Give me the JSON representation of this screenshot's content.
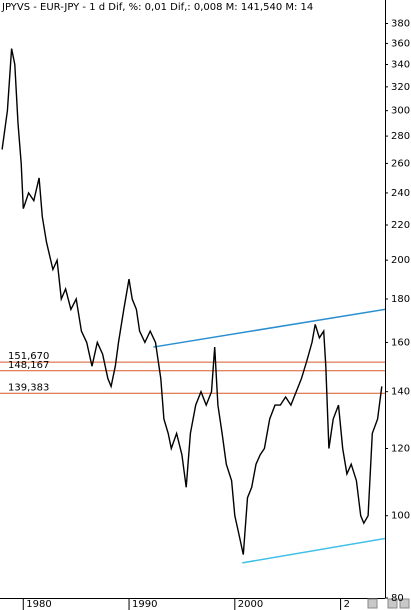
{
  "chart_data": {
    "type": "line",
    "title": "JPYVS - EUR-JPY - 1 d Dif, %: 0,01 Dif,: 0,008 M: 141,540 M: 14",
    "log_scale": true,
    "color": "#000000",
    "xlim": [
      1977.8,
      2014.2
    ],
    "xticks": [
      1980,
      1990,
      2000,
      {
        "value": 2010,
        "label": "2"
      }
    ],
    "ylim": [
      80,
      405
    ],
    "yticks": [
      80,
      100,
      120,
      140,
      160,
      180,
      200,
      220,
      240,
      260,
      280,
      300,
      320,
      340,
      360,
      380
    ],
    "x": [
      1978.0,
      1978.5,
      1978.9,
      1979.2,
      1979.5,
      1979.8,
      1980.0,
      1980.5,
      1981.0,
      1981.5,
      1981.8,
      1982.2,
      1982.8,
      1983.2,
      1983.6,
      1984.0,
      1984.5,
      1985.0,
      1985.5,
      1986.0,
      1986.5,
      1987.0,
      1987.5,
      1988.0,
      1988.3,
      1988.7,
      1989.0,
      1989.5,
      1990.0,
      1990.3,
      1990.7,
      1991.0,
      1991.5,
      1992.0,
      1992.5,
      1993.0,
      1993.3,
      1993.7,
      1994.0,
      1994.5,
      1995.0,
      1995.4,
      1995.8,
      1996.3,
      1996.8,
      1997.3,
      1997.8,
      1998.1,
      1998.4,
      1998.8,
      1999.2,
      1999.7,
      2000.0,
      2000.4,
      2000.8,
      2001.2,
      2001.6,
      2002.0,
      2002.4,
      2002.8,
      2003.3,
      2003.8,
      2004.3,
      2004.8,
      2005.3,
      2005.8,
      2006.3,
      2006.8,
      2007.3,
      2007.6,
      2008.0,
      2008.4,
      2008.6,
      2008.9,
      2009.3,
      2009.8,
      2010.2,
      2010.6,
      2011.0,
      2011.5,
      2011.9,
      2012.2,
      2012.6,
      2013.0,
      2013.5,
      2013.9
    ],
    "values": [
      270,
      300,
      355,
      340,
      290,
      260,
      230,
      240,
      235,
      250,
      225,
      210,
      195,
      200,
      180,
      185,
      175,
      180,
      165,
      160,
      150,
      160,
      155,
      145,
      142,
      150,
      160,
      175,
      190,
      180,
      175,
      165,
      160,
      165,
      160,
      145,
      130,
      125,
      120,
      125,
      118,
      108,
      125,
      135,
      140,
      135,
      140,
      158,
      135,
      125,
      115,
      110,
      100,
      95,
      90,
      105,
      108,
      115,
      118,
      120,
      130,
      135,
      135,
      138,
      135,
      140,
      145,
      152,
      160,
      168,
      162,
      165,
      150,
      120,
      130,
      135,
      120,
      112,
      115,
      110,
      100,
      98,
      100,
      125,
      130,
      142
    ],
    "hlines": [
      {
        "value": 151.67,
        "label": "151,670"
      },
      {
        "value": 148.167,
        "label": "148,167"
      },
      {
        "value": 139.383,
        "label": "139,383"
      }
    ],
    "hline_color": "#d85a28",
    "trendlines": [
      {
        "x": [
          1992.3,
          2014.2
        ],
        "values": [
          158,
          175
        ],
        "color": "#2a8fd0"
      },
      {
        "x": [
          2000.7,
          2014.2
        ],
        "values": [
          88,
          94
        ],
        "color": "#3ec0e8"
      }
    ]
  }
}
